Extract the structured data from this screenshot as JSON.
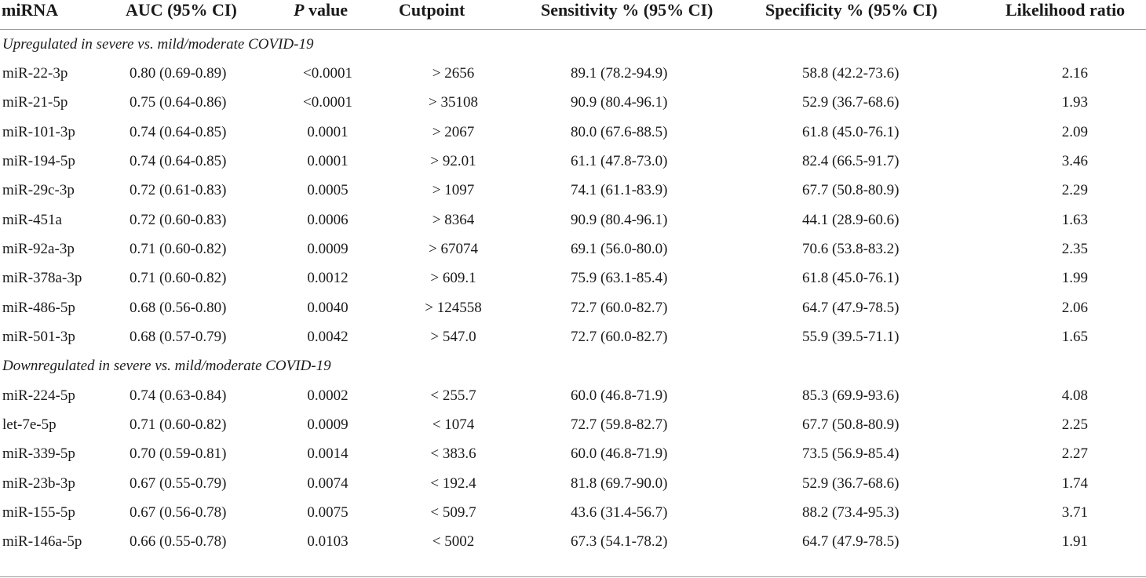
{
  "headers": {
    "mirna": "miRNA",
    "auc": "AUC (95% CI)",
    "p_italic": "P",
    "p_rest": " value",
    "cutpoint": "Cutpoint",
    "sensitivity": "Sensitivity % (95% CI)",
    "specificity": "Specificity % (95% CI)",
    "likelihood": "Likelihood ratio"
  },
  "sections": [
    {
      "title": "Upregulated in severe vs. mild/moderate COVID-19",
      "rows": [
        {
          "mirna": "miR-22-3p",
          "auc": "0.80 (0.69-0.89)",
          "p": "<0.0001",
          "cut": "> 2656",
          "sens": "89.1 (78.2-94.9)",
          "spec": "58.8 (42.2-73.6)",
          "lr": "2.16"
        },
        {
          "mirna": "miR-21-5p",
          "auc": "0.75 (0.64-0.86)",
          "p": "<0.0001",
          "cut": "> 35108",
          "sens": "90.9 (80.4-96.1)",
          "spec": "52.9 (36.7-68.6)",
          "lr": "1.93"
        },
        {
          "mirna": "miR-101-3p",
          "auc": "0.74 (0.64-0.85)",
          "p": "0.0001",
          "cut": "> 2067",
          "sens": "80.0 (67.6-88.5)",
          "spec": "61.8 (45.0-76.1)",
          "lr": "2.09"
        },
        {
          "mirna": "miR-194-5p",
          "auc": "0.74 (0.64-0.85)",
          "p": "0.0001",
          "cut": "> 92.01",
          "sens": "61.1 (47.8-73.0)",
          "spec": "82.4 (66.5-91.7)",
          "lr": "3.46"
        },
        {
          "mirna": "miR-29c-3p",
          "auc": "0.72 (0.61-0.83)",
          "p": "0.0005",
          "cut": "> 1097",
          "sens": "74.1 (61.1-83.9)",
          "spec": "67.7 (50.8-80.9)",
          "lr": "2.29"
        },
        {
          "mirna": "miR-451a",
          "auc": "0.72 (0.60-0.83)",
          "p": "0.0006",
          "cut": "> 8364",
          "sens": "90.9 (80.4-96.1)",
          "spec": "44.1 (28.9-60.6)",
          "lr": "1.63"
        },
        {
          "mirna": "miR-92a-3p",
          "auc": "0.71 (0.60-0.82)",
          "p": "0.0009",
          "cut": "> 67074",
          "sens": "69.1 (56.0-80.0)",
          "spec": "70.6 (53.8-83.2)",
          "lr": "2.35"
        },
        {
          "mirna": "miR-378a-3p",
          "auc": "0.71 (0.60-0.82)",
          "p": "0.0012",
          "cut": "> 609.1",
          "sens": "75.9 (63.1-85.4)",
          "spec": "61.8 (45.0-76.1)",
          "lr": "1.99"
        },
        {
          "mirna": "miR-486-5p",
          "auc": "0.68 (0.56-0.80)",
          "p": "0.0040",
          "cut": "> 124558",
          "sens": "72.7 (60.0-82.7)",
          "spec": "64.7 (47.9-78.5)",
          "lr": "2.06"
        },
        {
          "mirna": "miR-501-3p",
          "auc": "0.68 (0.57-0.79)",
          "p": "0.0042",
          "cut": "> 547.0",
          "sens": "72.7 (60.0-82.7)",
          "spec": "55.9 (39.5-71.1)",
          "lr": "1.65"
        }
      ]
    },
    {
      "title": "Downregulated in severe vs. mild/moderate COVID-19",
      "rows": [
        {
          "mirna": "miR-224-5p",
          "auc": "0.74 (0.63-0.84)",
          "p": "0.0002",
          "cut": "< 255.7",
          "sens": "60.0 (46.8-71.9)",
          "spec": "85.3 (69.9-93.6)",
          "lr": "4.08"
        },
        {
          "mirna": "let-7e-5p",
          "auc": "0.71 (0.60-0.82)",
          "p": "0.0009",
          "cut": "< 1074",
          "sens": "72.7 (59.8-82.7)",
          "spec": "67.7 (50.8-80.9)",
          "lr": "2.25"
        },
        {
          "mirna": "miR-339-5p",
          "auc": "0.70 (0.59-0.81)",
          "p": "0.0014",
          "cut": "< 383.6",
          "sens": "60.0 (46.8-71.9)",
          "spec": "73.5 (56.9-85.4)",
          "lr": "2.27"
        },
        {
          "mirna": "miR-23b-3p",
          "auc": "0.67 (0.55-0.79)",
          "p": "0.0074",
          "cut": "< 192.4",
          "sens": "81.8 (69.7-90.0)",
          "spec": "52.9 (36.7-68.6)",
          "lr": "1.74"
        },
        {
          "mirna": "miR-155-5p",
          "auc": "0.67 (0.56-0.78)",
          "p": "0.0075",
          "cut": "< 509.7",
          "sens": "43.6 (31.4-56.7)",
          "spec": "88.2 (73.4-95.3)",
          "lr": "3.71"
        },
        {
          "mirna": "miR-146a-5p",
          "auc": "0.66 (0.55-0.78)",
          "p": "0.0103",
          "cut": "< 5002",
          "sens": "67.3 (54.1-78.2)",
          "spec": "64.7 (47.9-78.5)",
          "lr": "1.91"
        }
      ]
    }
  ]
}
